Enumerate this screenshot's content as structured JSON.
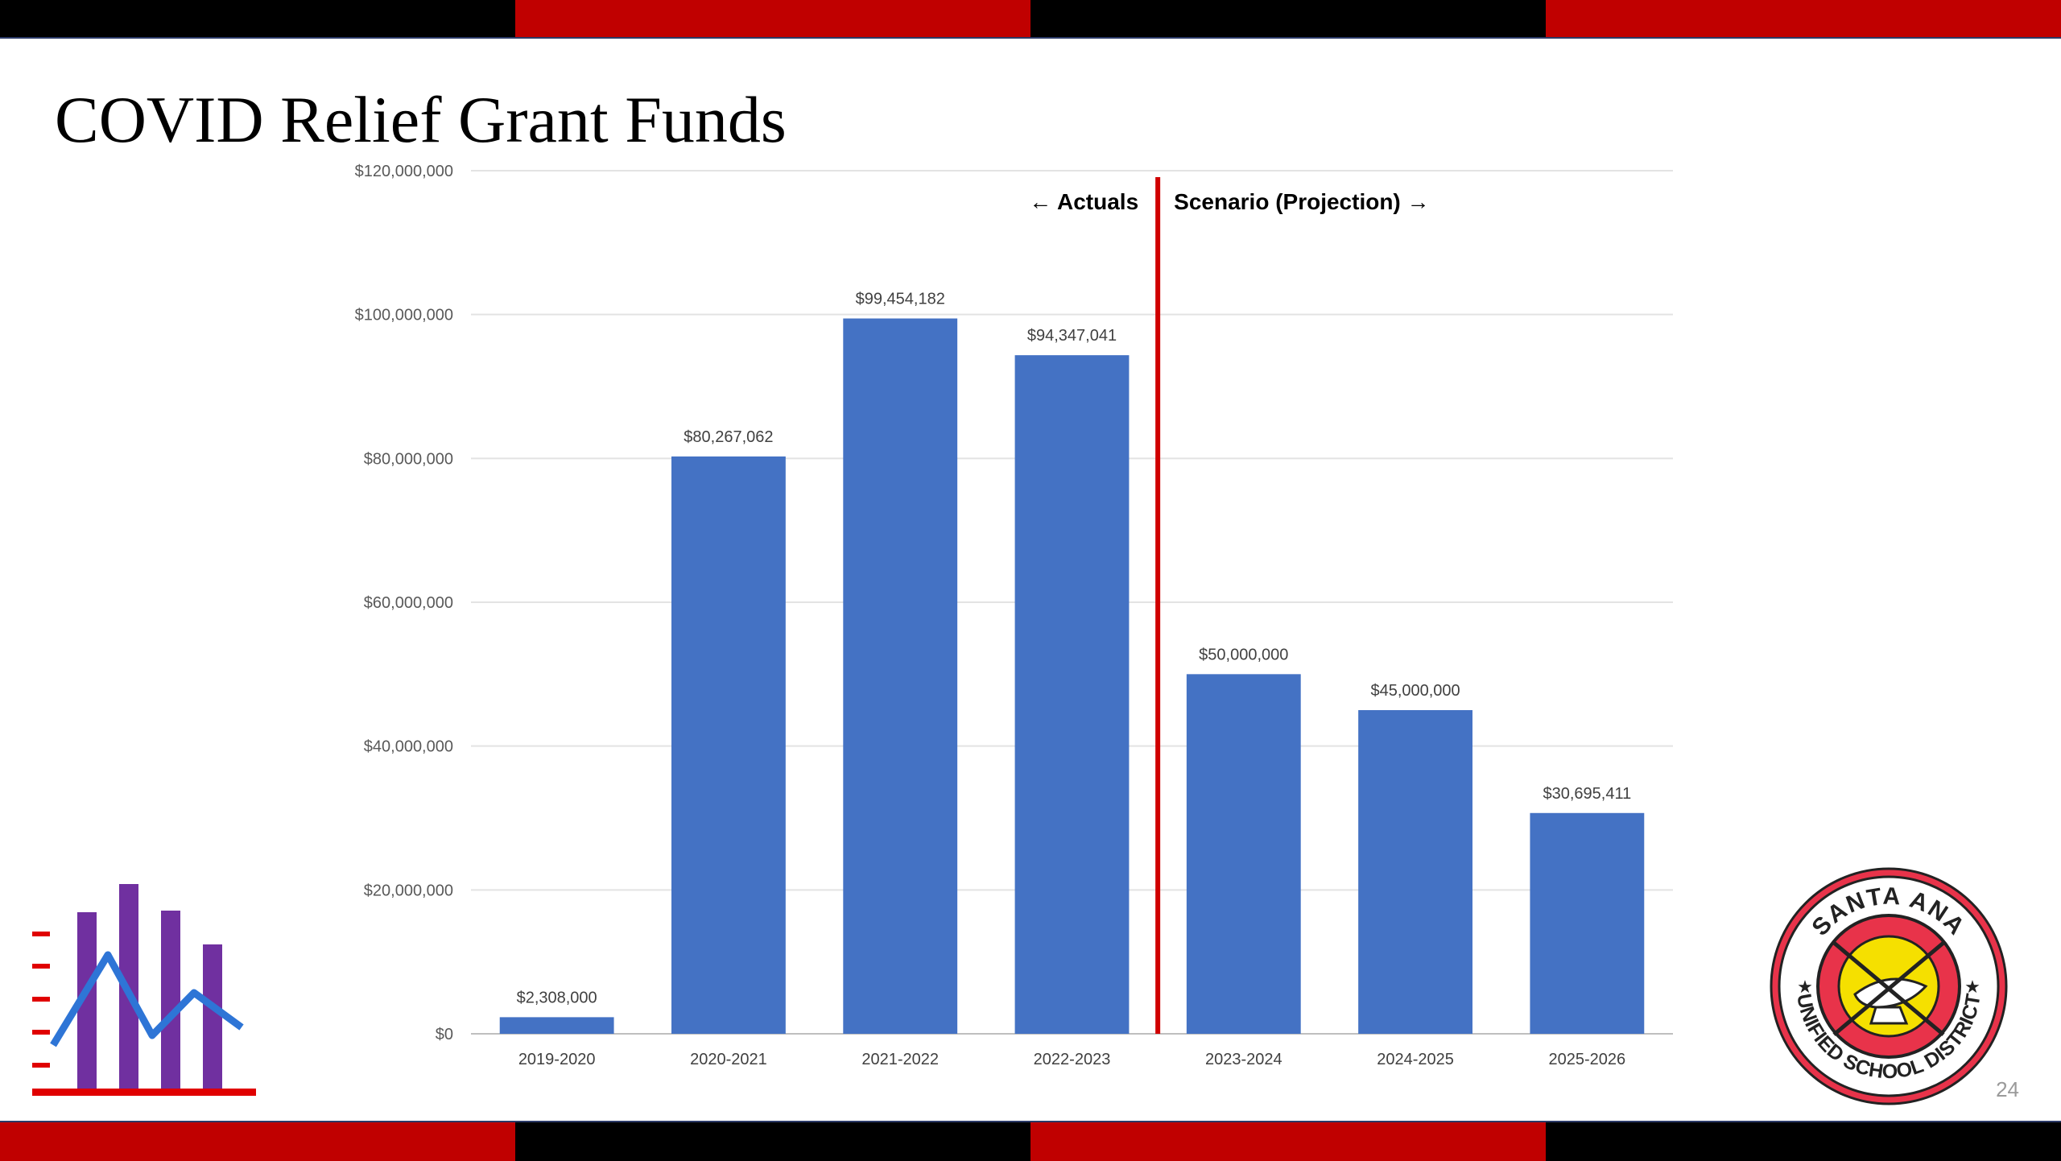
{
  "slide": {
    "title": "COVID Relief Grant Funds",
    "page_number": "24"
  },
  "logo": {
    "text_top": "SANTA ANA",
    "text_bottom": "UNIFIED SCHOOL DISTRICT"
  },
  "colors": {
    "bar": "#4472C4",
    "divider": "#D00000",
    "stripe_red": "#C00000",
    "stripe_black": "#000000",
    "icon_purple": "#7030A0",
    "icon_line": "#2E75D6",
    "icon_red": "#E00000"
  },
  "chart_data": {
    "type": "bar",
    "categories": [
      "2019-2020",
      "2020-2021",
      "2021-2022",
      "2022-2023",
      "2023-2024",
      "2024-2025",
      "2025-2026"
    ],
    "values": [
      2308000,
      80267062,
      99454182,
      94347041,
      50000000,
      45000000,
      30695411
    ],
    "data_labels": [
      "$2,308,000",
      "$80,267,062",
      "$99,454,182",
      "$94,347,041",
      "$50,000,000",
      "$45,000,000",
      "$30,695,411"
    ],
    "yticks": [
      0,
      20000000,
      40000000,
      60000000,
      80000000,
      100000000,
      120000000
    ],
    "ytick_labels": [
      "$0",
      "$20,000,000",
      "$40,000,000",
      "$60,000,000",
      "$80,000,000",
      "$100,000,000",
      "$120,000,000"
    ],
    "ylim": [
      0,
      120000000
    ],
    "grid": true,
    "annotations": {
      "actuals": "Actuals",
      "projection": "Scenario (Projection)"
    },
    "divider_after_category": "2022-2023"
  }
}
